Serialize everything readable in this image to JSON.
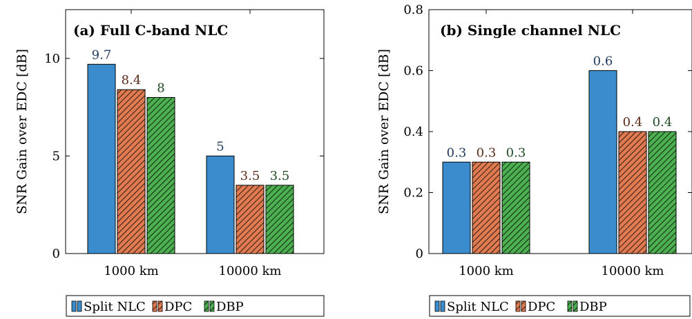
{
  "colors": {
    "split": "#3a8ccc",
    "dpc": "#e07a50",
    "dbp": "#4caf50",
    "split_label": "#1f3a5f",
    "dpc_label": "#5a2a1a",
    "dbp_label": "#1f4a22",
    "axis": "#000000"
  },
  "legend": {
    "items": [
      {
        "label": "Split NLC",
        "color_key": "split",
        "hatch": false
      },
      {
        "label": "DPC",
        "color_key": "dpc",
        "hatch": true
      },
      {
        "label": "DBP",
        "color_key": "dbp",
        "hatch": true
      }
    ]
  },
  "chart_data": [
    {
      "type": "bar",
      "title": "(a) Full C-band NLC",
      "xlabel": "",
      "ylabel": "SNR Gain over EDC [dB]",
      "ylim": [
        0,
        12.5
      ],
      "yticks": [
        0,
        5,
        10
      ],
      "ytick_labels": [
        "0",
        "5",
        "10"
      ],
      "categories": [
        "1000 km",
        "10000 km"
      ],
      "series": [
        {
          "name": "Split NLC",
          "values": [
            9.7,
            5
          ],
          "labels": [
            "9.7",
            "5"
          ]
        },
        {
          "name": "DPC",
          "values": [
            8.4,
            3.5
          ],
          "labels": [
            "8.4",
            "3.5"
          ]
        },
        {
          "name": "DBP",
          "values": [
            8,
            3.5
          ],
          "labels": [
            "8",
            "3.5"
          ]
        }
      ],
      "grid": false,
      "legend_position": "bottom"
    },
    {
      "type": "bar",
      "title": "(b) Single channel NLC",
      "xlabel": "",
      "ylabel": "SNR Gain over EDC [dB]",
      "ylim": [
        0,
        0.8
      ],
      "yticks": [
        0,
        0.2,
        0.4,
        0.6,
        0.8
      ],
      "ytick_labels": [
        "0",
        "0.2",
        "0.4",
        "0.6",
        "0.8"
      ],
      "categories": [
        "1000 km",
        "10000 km"
      ],
      "series": [
        {
          "name": "Split NLC",
          "values": [
            0.3,
            0.6
          ],
          "labels": [
            "0.3",
            "0.6"
          ]
        },
        {
          "name": "DPC",
          "values": [
            0.3,
            0.4
          ],
          "labels": [
            "0.3",
            "0.4"
          ]
        },
        {
          "name": "DBP",
          "values": [
            0.3,
            0.4
          ],
          "labels": [
            "0.3",
            "0.4"
          ]
        }
      ],
      "grid": false,
      "legend_position": "bottom"
    }
  ]
}
